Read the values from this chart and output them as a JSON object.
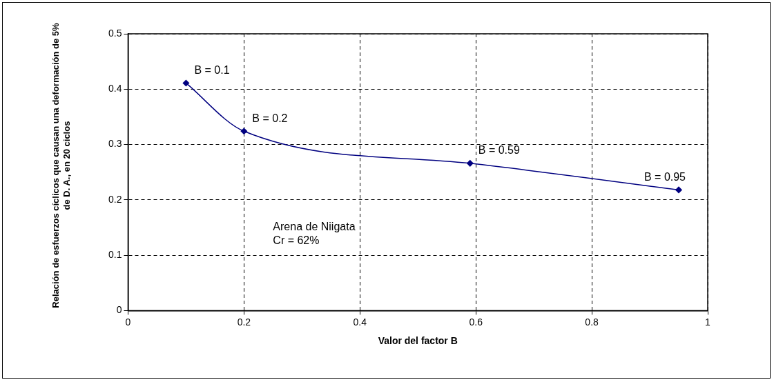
{
  "chart_data": {
    "type": "line",
    "xlabel": "Valor del factor B",
    "ylabel": "Relación de esfuerzos cíclicos que causan una deformación de 5% de D. A., en 20 ciclos",
    "x": [
      0.1,
      0.2,
      0.59,
      0.95
    ],
    "series": [
      {
        "color": "#000080",
        "values": [
          0.411,
          0.324,
          0.266,
          0.218
        ]
      }
    ],
    "xlim": [
      0,
      1
    ],
    "xticks": [
      0,
      0.2,
      0.4,
      0.6,
      0.8,
      1
    ],
    "ylim": [
      0,
      0.5
    ],
    "yticks": [
      0,
      0.1,
      0.2,
      0.3,
      0.4,
      0.5
    ],
    "grid": true,
    "legend": false,
    "marker": "diamond",
    "line_style": "solid",
    "annotations": [
      {
        "text": "B = 0.1",
        "x": 0.1,
        "y": 0.411
      },
      {
        "text": "B = 0.2",
        "x": 0.2,
        "y": 0.324
      },
      {
        "text": "B = 0.59",
        "x": 0.59,
        "y": 0.266
      },
      {
        "text": "B = 0.95",
        "x": 0.95,
        "y": 0.218
      },
      "Arena de Niigata",
      "Cr = 62%"
    ]
  }
}
